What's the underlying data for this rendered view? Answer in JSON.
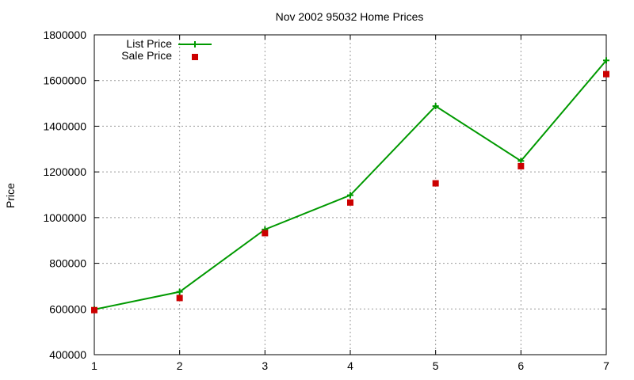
{
  "chart_data": {
    "type": "line",
    "title": "Nov 2002 95032 Home Prices",
    "xlabel": "",
    "ylabel": "Price",
    "x": [
      1,
      2,
      3,
      4,
      5,
      6,
      7
    ],
    "xlim": [
      1,
      7
    ],
    "ylim": [
      400000,
      1800000
    ],
    "xticks": [
      "1",
      "2",
      "3",
      "4",
      "5",
      "6",
      "7"
    ],
    "yticks": [
      "400000",
      "600000",
      "800000",
      "1000000",
      "1200000",
      "1400000",
      "1600000",
      "1800000"
    ],
    "grid": true,
    "legend_position": "top-left",
    "series": [
      {
        "name": "List Price",
        "style": "line with plus markers",
        "color": "#009900",
        "values": [
          598000,
          675000,
          948000,
          1098000,
          1488000,
          1248000,
          1688000
        ]
      },
      {
        "name": "Sale Price",
        "style": "square markers",
        "color": "#cc0000",
        "values": [
          595000,
          648000,
          932000,
          1066000,
          1150000,
          1225000,
          1628000
        ]
      }
    ]
  }
}
